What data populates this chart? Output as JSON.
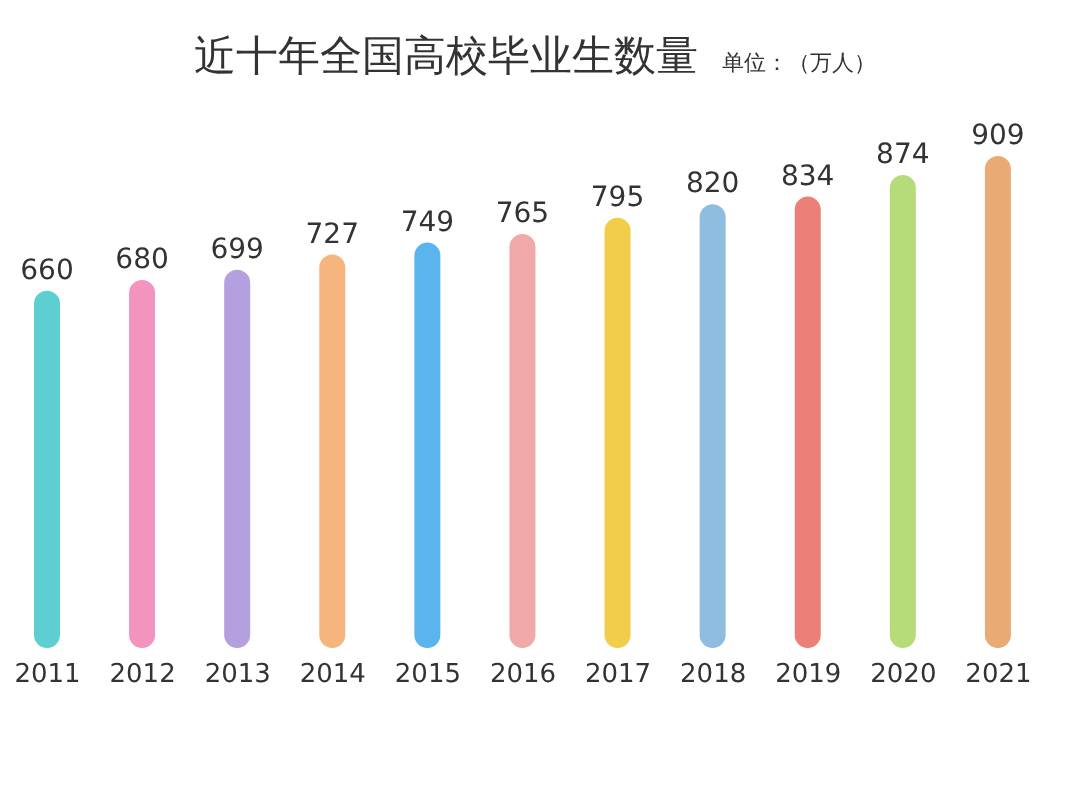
{
  "chart_data": {
    "type": "bar",
    "title": "近十年全国高校毕业生数量",
    "subtitle": "单位：（万人）",
    "categories": [
      "2011",
      "2012",
      "2013",
      "2014",
      "2015",
      "2016",
      "2017",
      "2018",
      "2019",
      "2020",
      "2021"
    ],
    "values": [
      660,
      680,
      699,
      727,
      749,
      765,
      795,
      820,
      834,
      874,
      909
    ],
    "colors": [
      "#5ecfd0",
      "#f294bd",
      "#b5a0df",
      "#f7b57e",
      "#5ab4ee",
      "#f0a9a8",
      "#f2cd4a",
      "#8fbde0",
      "#ec7f77",
      "#b5dc79",
      "#e9ab73"
    ],
    "data_labels": true,
    "grid": false,
    "legend": false
  }
}
